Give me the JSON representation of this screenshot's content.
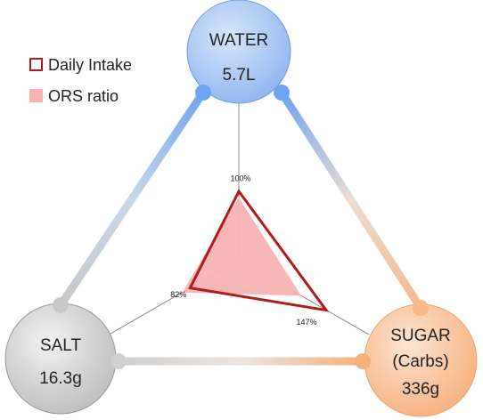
{
  "nodes": [
    {
      "label": "WATER",
      "value": "5.7L"
    },
    {
      "label": "SALT",
      "value": "16.3g"
    },
    {
      "label": "SUGAR",
      "sublabel": "(Carbs)",
      "value": "336g"
    }
  ],
  "radar": {
    "series": [
      {
        "name": "Daily Intake",
        "values": [
          100,
          82,
          147
        ],
        "value_labels": [
          "100%",
          "82%",
          "147%"
        ]
      },
      {
        "name": "ORS ratio",
        "values": [
          91,
          95,
          105
        ]
      }
    ]
  }
}
